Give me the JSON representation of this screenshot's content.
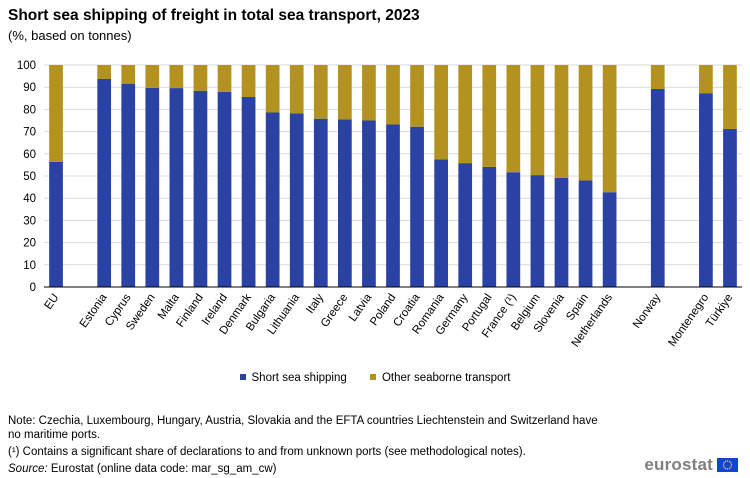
{
  "title": "Short sea shipping of freight in total sea transport, 2023",
  "subtitle": "(%, based on tonnes)",
  "colors": {
    "short_sea": "#2a42a4",
    "other": "#b4921f",
    "grid": "#d9d9d9",
    "axis": "#000000"
  },
  "chart_data": {
    "type": "bar",
    "stacked": true,
    "categories": [
      "EU",
      "Estonia",
      "Cyprus",
      "Sweden",
      "Malta",
      "Finland",
      "Ireland",
      "Denmark",
      "Bulgaria",
      "Lithuania",
      "Italy",
      "Greece",
      "Latvia",
      "Poland",
      "Croatia",
      "Romania",
      "Germany",
      "Portugal",
      "France (¹)",
      "Belgium",
      "Slovenia",
      "Spain",
      "Netherlands",
      "Norway",
      "Montenegro",
      "Türkiye"
    ],
    "gap_before": [
      "Estonia",
      "Norway",
      "Montenegro"
    ],
    "series": [
      {
        "name": "Short sea shipping",
        "values": [
          56.4,
          93.7,
          91.6,
          89.7,
          89.6,
          88.4,
          87.9,
          85.6,
          78.6,
          78.2,
          75.8,
          75.5,
          75.0,
          73.2,
          72.2,
          57.5,
          55.8,
          54.1,
          51.7,
          50.4,
          49.2,
          48.0,
          42.7,
          89.2,
          87.3,
          71.2
        ]
      },
      {
        "name": "Other seaborne transport",
        "values": [
          43.6,
          6.3,
          8.4,
          10.3,
          10.4,
          11.6,
          12.1,
          14.4,
          21.4,
          21.8,
          24.2,
          24.5,
          25.0,
          26.8,
          27.8,
          42.5,
          44.2,
          45.9,
          48.3,
          49.6,
          50.8,
          52.0,
          57.3,
          10.8,
          12.7,
          28.8
        ]
      }
    ],
    "ylim": [
      0,
      100
    ],
    "yticks": [
      0,
      10,
      20,
      30,
      40,
      50,
      60,
      70,
      80,
      90,
      100
    ],
    "xlabel": "",
    "ylabel": "",
    "grid": true,
    "legend_position": "bottom-center"
  },
  "legend": {
    "short_sea": "Short sea shipping",
    "other": "Other seaborne transport"
  },
  "notes": {
    "note1": "Note: Czechia, Luxembourg, Hungary, Austria, Slovakia and the EFTA countries Liechtenstein and Switzerland have no maritime ports.",
    "note2": "(¹) Contains a significant share of declarations to and from unknown ports (see methodological notes).",
    "source_label": "Source:",
    "source_text": " Eurostat (online data code: mar_sg_am_cw)"
  },
  "logo": {
    "text": "eurostat"
  }
}
